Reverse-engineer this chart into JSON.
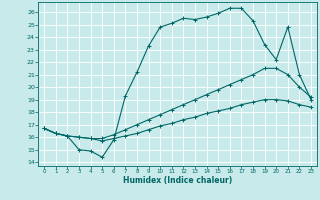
{
  "xlabel": "Humidex (Indice chaleur)",
  "xlim": [
    -0.5,
    23.5
  ],
  "ylim": [
    13.7,
    26.8
  ],
  "yticks": [
    14,
    15,
    16,
    17,
    18,
    19,
    20,
    21,
    22,
    23,
    24,
    25,
    26
  ],
  "xticks": [
    0,
    1,
    2,
    3,
    4,
    5,
    6,
    7,
    8,
    9,
    10,
    11,
    12,
    13,
    14,
    15,
    16,
    17,
    18,
    19,
    20,
    21,
    22,
    23
  ],
  "bg_color": "#c8eaea",
  "line_color": "#006666",
  "curve1_x": [
    0,
    1,
    2,
    3,
    4,
    5,
    6,
    7,
    8,
    9,
    10,
    11,
    12,
    13,
    14,
    15,
    16,
    17,
    18,
    19,
    20,
    21,
    22,
    23
  ],
  "curve1_y": [
    16.7,
    16.3,
    16.1,
    15.0,
    14.9,
    14.4,
    15.8,
    19.3,
    21.2,
    23.3,
    24.8,
    25.1,
    25.5,
    25.4,
    25.6,
    25.9,
    26.3,
    26.3,
    25.3,
    23.4,
    22.2,
    24.8,
    21.0,
    19.0
  ],
  "curve2_x": [
    0,
    1,
    2,
    3,
    4,
    5,
    6,
    7,
    8,
    9,
    10,
    11,
    12,
    13,
    14,
    15,
    16,
    17,
    18,
    19,
    20,
    21,
    22,
    23
  ],
  "curve2_y": [
    16.7,
    16.3,
    16.1,
    16.0,
    15.9,
    15.9,
    16.2,
    16.6,
    17.0,
    17.4,
    17.8,
    18.2,
    18.6,
    19.0,
    19.4,
    19.8,
    20.2,
    20.6,
    21.0,
    21.5,
    21.5,
    21.0,
    20.0,
    19.2
  ],
  "curve3_x": [
    0,
    1,
    2,
    3,
    4,
    5,
    6,
    7,
    8,
    9,
    10,
    11,
    12,
    13,
    14,
    15,
    16,
    17,
    18,
    19,
    20,
    21,
    22,
    23
  ],
  "curve3_y": [
    16.7,
    16.3,
    16.1,
    16.0,
    15.9,
    15.7,
    15.9,
    16.1,
    16.3,
    16.6,
    16.9,
    17.1,
    17.4,
    17.6,
    17.9,
    18.1,
    18.3,
    18.6,
    18.8,
    19.0,
    19.0,
    18.9,
    18.6,
    18.4
  ],
  "linewidth": 0.8,
  "markersize": 3.0
}
